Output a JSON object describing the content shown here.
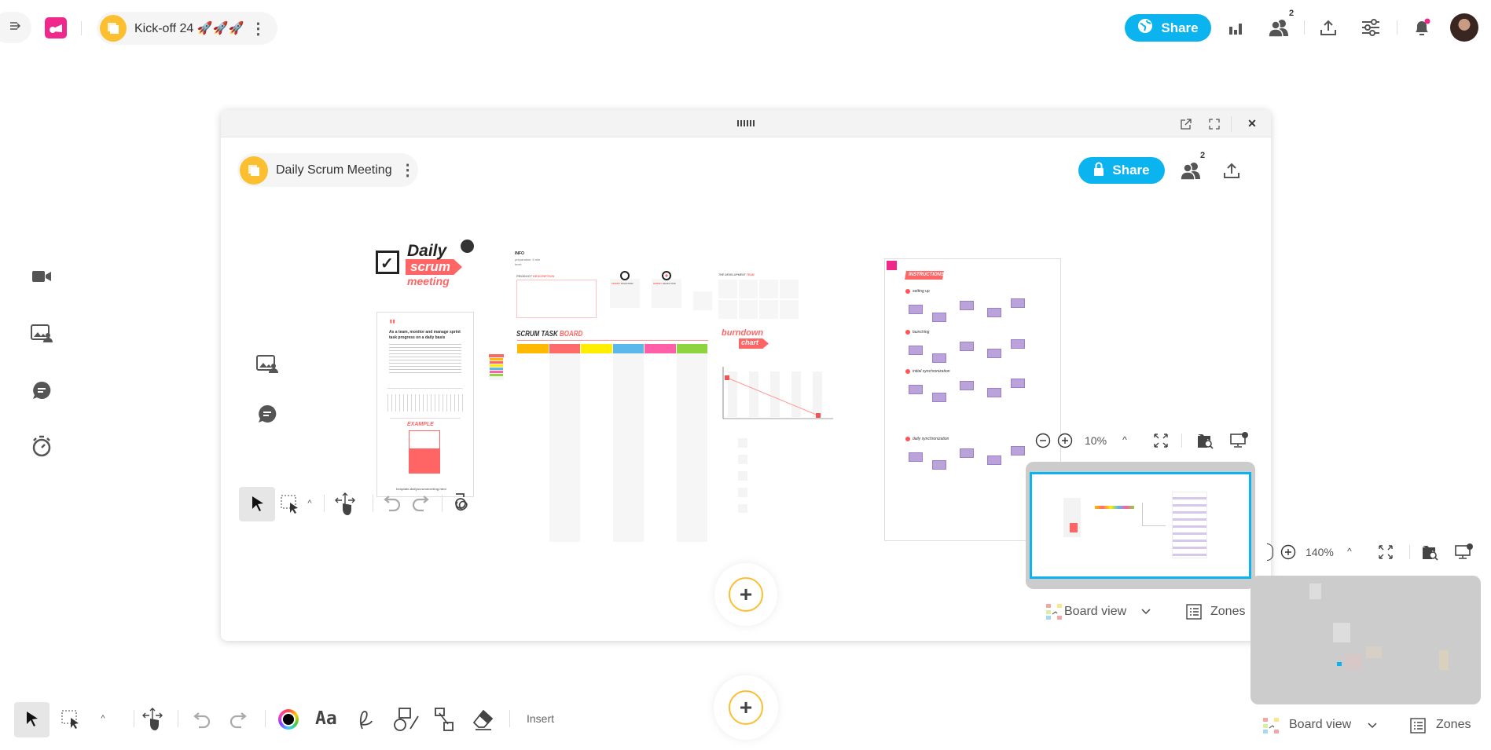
{
  "topbar": {
    "board_title": "Kick-off 24 🚀🚀🚀",
    "share_label": "Share",
    "collaborators_count": "2",
    "icons": [
      "collapse-sidebar-icon",
      "app-logo",
      "folder-icon",
      "more-vertical-icon",
      "globe-icon",
      "stats-icon",
      "collaborators-icon",
      "upload-icon",
      "settings-sliders-icon",
      "bell-icon",
      "user-avatar"
    ],
    "accent_color": "#0bb4ef",
    "notification_dot_color": "#f0288c"
  },
  "left_sidebar": {
    "icons": [
      "video-icon",
      "image-person-icon",
      "chat-icon",
      "timer-icon"
    ]
  },
  "embedded_window": {
    "board_title": "Daily Scrum Meeting",
    "share_label": "Share",
    "collaborators_count": "2",
    "zoom_level": "10%",
    "board_view_label": "Board view",
    "zones_label": "Zones",
    "board": {
      "logo": {
        "line1": "Daily",
        "line2": "scrum",
        "line3": "meeting"
      },
      "intro": {
        "heading": "As a team, monitor and manage sprint task progress on a daily basis",
        "example_label": "EXAMPLE",
        "footer": "template-dailyscrummeeting.html"
      },
      "info": {
        "title": "INFO",
        "preparation": "preparation: 5 min",
        "level": "level:"
      },
      "product_description": {
        "label_a": "PRODUCT",
        "label_b": "DESCRIPTION"
      },
      "sprint_duration": {
        "label_a": "SPRINT",
        "label_b": "DURATION"
      },
      "sprint_objective": {
        "label_a": "SPRINT",
        "label_b": "OBJECTIVE"
      },
      "dev_team": {
        "label_a": "THE DEVELOPMENT",
        "label_b": "TEAM"
      },
      "task_board": {
        "title_a": "SCRUM TASK",
        "title_b": "BOARD",
        "column_colors": [
          "#ffb900",
          "#ff6b6b",
          "#ffee00",
          "#5ab9ea",
          "#ff5fa8",
          "#8ed43f"
        ]
      },
      "burndown": {
        "title_a": "burndown",
        "title_b": "chart"
      },
      "instructions": {
        "title": "INSTRUCTIONS",
        "steps": [
          "setting up",
          "launching",
          "initial synchronization",
          "daily synchronization"
        ]
      }
    }
  },
  "canvas": {
    "zoom_level": "140%",
    "board_view_label": "Board view",
    "zones_label": "Zones"
  },
  "toolbar": {
    "insert_label": "Insert"
  }
}
